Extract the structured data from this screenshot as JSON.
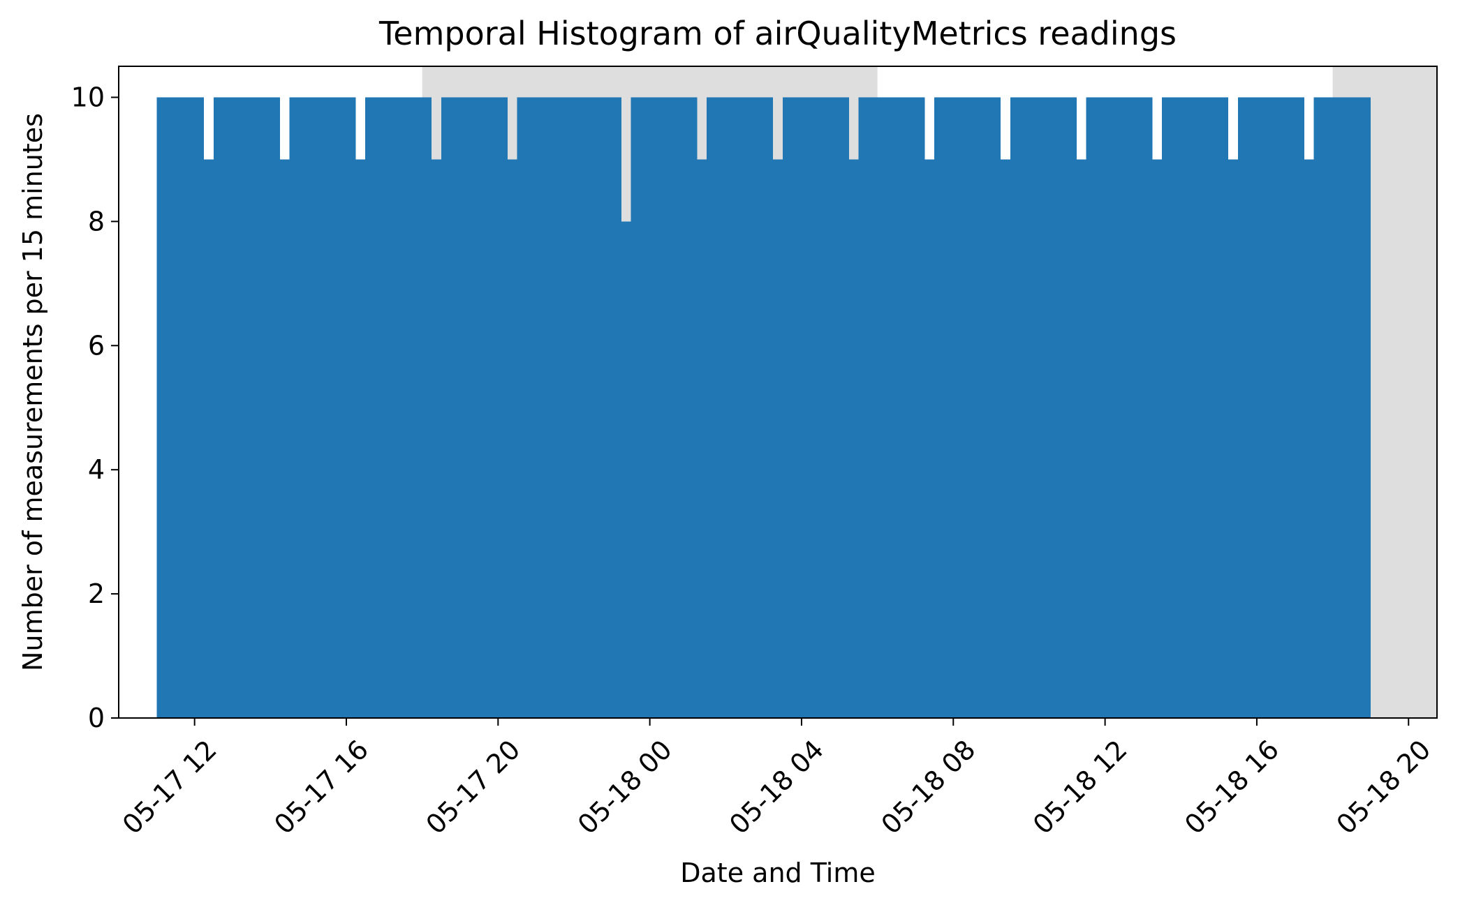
{
  "chart_data": {
    "type": "bar",
    "title": "Temporal Histogram of airQualityMetrics readings",
    "xlabel": "Date and Time",
    "ylabel": "Number of measurements per 15 minutes",
    "x_axis": {
      "kind": "datetime",
      "range": [
        "2024-05-17T10:00",
        "2024-05-18T20:45"
      ],
      "ticks": [
        "2024-05-17T12:00",
        "2024-05-17T16:00",
        "2024-05-17T20:00",
        "2024-05-18T00:00",
        "2024-05-18T04:00",
        "2024-05-18T08:00",
        "2024-05-18T12:00",
        "2024-05-18T16:00",
        "2024-05-18T20:00"
      ],
      "tick_labels": [
        "05-17 12",
        "05-17 16",
        "05-17 20",
        "05-18 00",
        "05-18 04",
        "05-18 08",
        "05-18 12",
        "05-18 16",
        "05-18 20"
      ],
      "tick_rotation_deg": 45
    },
    "y_axis": {
      "range": [
        0,
        10.5
      ],
      "ticks": [
        0,
        2,
        4,
        6,
        8,
        10
      ],
      "tick_labels": [
        "0",
        "2",
        "4",
        "6",
        "8",
        "10"
      ]
    },
    "bin_width": "15 minutes",
    "night_shading": [
      {
        "start": "2024-05-17T18:00",
        "end": "2024-05-18T06:00"
      },
      {
        "start": "2024-05-18T18:00",
        "end": "2024-05-18T20:45"
      }
    ],
    "bins": [
      {
        "start": "2024-05-17T11:00",
        "end": "2024-05-17T12:15",
        "value": 10
      },
      {
        "start": "2024-05-17T12:15",
        "end": "2024-05-17T12:30",
        "value": 9
      },
      {
        "start": "2024-05-17T12:30",
        "end": "2024-05-17T14:15",
        "value": 10
      },
      {
        "start": "2024-05-17T14:15",
        "end": "2024-05-17T14:30",
        "value": 9
      },
      {
        "start": "2024-05-17T14:30",
        "end": "2024-05-17T16:15",
        "value": 10
      },
      {
        "start": "2024-05-17T16:15",
        "end": "2024-05-17T16:30",
        "value": 9
      },
      {
        "start": "2024-05-17T16:30",
        "end": "2024-05-17T18:15",
        "value": 10
      },
      {
        "start": "2024-05-17T18:15",
        "end": "2024-05-17T18:30",
        "value": 9
      },
      {
        "start": "2024-05-17T18:30",
        "end": "2024-05-17T20:15",
        "value": 10
      },
      {
        "start": "2024-05-17T20:15",
        "end": "2024-05-17T20:30",
        "value": 9
      },
      {
        "start": "2024-05-17T20:30",
        "end": "2024-05-17T23:15",
        "value": 10
      },
      {
        "start": "2024-05-17T23:15",
        "end": "2024-05-17T23:30",
        "value": 8
      },
      {
        "start": "2024-05-17T23:30",
        "end": "2024-05-18T01:15",
        "value": 10
      },
      {
        "start": "2024-05-18T01:15",
        "end": "2024-05-18T01:30",
        "value": 9
      },
      {
        "start": "2024-05-18T01:30",
        "end": "2024-05-18T03:15",
        "value": 10
      },
      {
        "start": "2024-05-18T03:15",
        "end": "2024-05-18T03:30",
        "value": 9
      },
      {
        "start": "2024-05-18T03:30",
        "end": "2024-05-18T05:15",
        "value": 10
      },
      {
        "start": "2024-05-18T05:15",
        "end": "2024-05-18T05:30",
        "value": 9
      },
      {
        "start": "2024-05-18T05:30",
        "end": "2024-05-18T07:15",
        "value": 10
      },
      {
        "start": "2024-05-18T07:15",
        "end": "2024-05-18T07:30",
        "value": 9
      },
      {
        "start": "2024-05-18T07:30",
        "end": "2024-05-18T09:15",
        "value": 10
      },
      {
        "start": "2024-05-18T09:15",
        "end": "2024-05-18T09:30",
        "value": 9
      },
      {
        "start": "2024-05-18T09:30",
        "end": "2024-05-18T11:15",
        "value": 10
      },
      {
        "start": "2024-05-18T11:15",
        "end": "2024-05-18T11:30",
        "value": 9
      },
      {
        "start": "2024-05-18T11:30",
        "end": "2024-05-18T13:15",
        "value": 10
      },
      {
        "start": "2024-05-18T13:15",
        "end": "2024-05-18T13:30",
        "value": 9
      },
      {
        "start": "2024-05-18T13:30",
        "end": "2024-05-18T15:15",
        "value": 10
      },
      {
        "start": "2024-05-18T15:15",
        "end": "2024-05-18T15:30",
        "value": 9
      },
      {
        "start": "2024-05-18T15:30",
        "end": "2024-05-18T17:15",
        "value": 10
      },
      {
        "start": "2024-05-18T17:15",
        "end": "2024-05-18T17:30",
        "value": 9
      },
      {
        "start": "2024-05-18T17:30",
        "end": "2024-05-18T19:00",
        "value": 10
      }
    ],
    "colors": {
      "bar": "#2077b4",
      "night_shading": "#dedede",
      "background": "#ffffff",
      "axes": "#000000"
    },
    "grid": false
  }
}
